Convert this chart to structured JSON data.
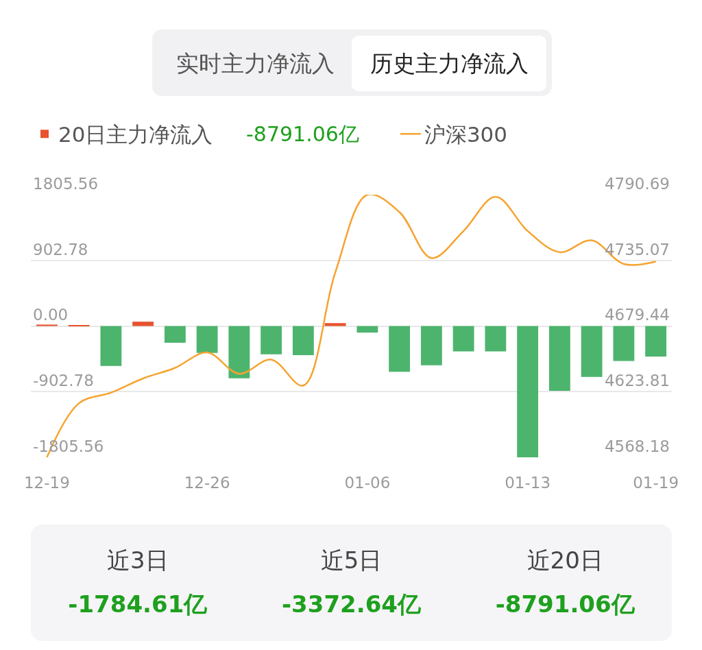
{
  "chart_data": {
    "type": "bar",
    "categories": [
      "12-19",
      null,
      null,
      null,
      null,
      "12-26",
      null,
      null,
      null,
      null,
      "01-06",
      null,
      null,
      null,
      null,
      "01-13",
      null,
      null,
      null,
      "01-19"
    ],
    "series": [
      {
        "name": "20日主力净流入",
        "colors": [
          "#e8522e",
          "#e8522e",
          "#4db46e",
          "#e8522e",
          "#4db46e",
          "#4db46e",
          "#4db46e",
          "#4db46e",
          "#4db46e",
          "#e8522e",
          "#4db46e",
          "#4db46e",
          "#4db46e",
          "#4db46e",
          "#4db46e",
          "#4db46e",
          "#4db46e",
          "#4db46e",
          "#4db46e",
          "#4db46e"
        ],
        "values": [
          20,
          10,
          -550,
          60,
          -230,
          -370,
          -720,
          -390,
          -400,
          40,
          -90,
          -630,
          -540,
          -350,
          -350,
          -1805.56,
          -890,
          -700,
          -480,
          -420
        ]
      },
      {
        "name": "沪深300",
        "type": "line",
        "color": "#f6a32f",
        "axis": "y2",
        "values": [
          4568.18,
          4614,
          4623,
          4635,
          4644,
          4657,
          4639,
          4651,
          4629,
          4725,
          4790.69,
          4776,
          4737,
          4760,
          4789,
          4760,
          4742,
          4752,
          4732,
          4734
        ]
      }
    ],
    "ylim": [
      -1805.56,
      1805.56
    ],
    "yticks": [
      -1805.56,
      -902.78,
      {
        "value": 0,
        "label": "0.00"
      },
      902.78,
      1805.56
    ],
    "y2lim": [
      4568.18,
      4790.69
    ],
    "y2ticks": [
      4568.18,
      4623.81,
      4679.44,
      4735.07,
      4790.69
    ],
    "grid": "y",
    "legend": "top left",
    "annotations": [
      "实时主力净流入",
      "历史主力净流入",
      "-8791.06亿",
      "近3日",
      "-1784.61亿",
      "近5日",
      "-3372.64亿",
      "近20日",
      "-8791.06亿"
    ]
  }
}
